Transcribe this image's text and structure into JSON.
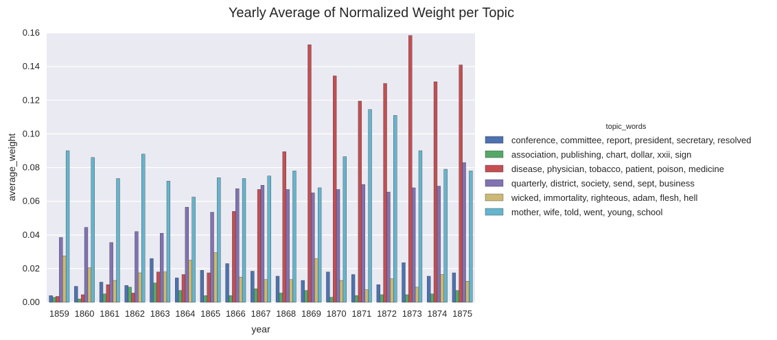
{
  "chart_data": {
    "type": "bar",
    "title": "Yearly Average of Normalized Weight per Topic",
    "xlabel": "year",
    "ylabel": "average_weight",
    "ylim": [
      0,
      0.16
    ],
    "yticks": [
      "0.00",
      "0.02",
      "0.04",
      "0.06",
      "0.08",
      "0.10",
      "0.12",
      "0.14",
      "0.16"
    ],
    "grid": true,
    "legend_title": "topic_words",
    "legend_position": "right",
    "categories": [
      "1859",
      "1860",
      "1861",
      "1862",
      "1863",
      "1864",
      "1865",
      "1866",
      "1867",
      "1868",
      "1869",
      "1870",
      "1871",
      "1872",
      "1873",
      "1874",
      "1875"
    ],
    "series": [
      {
        "name": "conference, committee, report, president, secretary, resolved",
        "color": "#4c72b0",
        "values": [
          0.004,
          0.0095,
          0.012,
          0.01,
          0.026,
          0.0145,
          0.019,
          0.023,
          0.0185,
          0.0155,
          0.013,
          0.018,
          0.0165,
          0.0105,
          0.0235,
          0.0155,
          0.0175
        ]
      },
      {
        "name": "association, publishing, chart, dollar, xxii, sign",
        "color": "#55a868",
        "values": [
          0.003,
          0.002,
          0.005,
          0.009,
          0.0115,
          0.007,
          0.004,
          0.004,
          0.008,
          0.0055,
          0.007,
          0.003,
          0.004,
          0.0045,
          0.0045,
          0.005,
          0.007
        ]
      },
      {
        "name": "disease, physician, tobacco, patient, poison, medicine",
        "color": "#c44e52",
        "values": [
          0.0035,
          0.0045,
          0.0105,
          0.0055,
          0.018,
          0.0165,
          0.0175,
          0.054,
          0.067,
          0.0895,
          0.153,
          0.1345,
          0.1195,
          0.13,
          0.1585,
          0.131,
          0.141
        ]
      },
      {
        "name": "quarterly, district, society, send, sept, business",
        "color": "#8172b2",
        "values": [
          0.0385,
          0.0445,
          0.0355,
          0.042,
          0.041,
          0.0565,
          0.0535,
          0.0675,
          0.0695,
          0.067,
          0.065,
          0.067,
          0.07,
          0.0655,
          0.068,
          0.069,
          0.083
        ]
      },
      {
        "name": "wicked, immortality, righteous, adam, flesh, hell",
        "color": "#ccb974",
        "values": [
          0.0275,
          0.0205,
          0.013,
          0.0175,
          0.018,
          0.025,
          0.0295,
          0.015,
          0.0135,
          0.0135,
          0.026,
          0.013,
          0.0075,
          0.014,
          0.009,
          0.0165,
          0.0125
        ]
      },
      {
        "name": "mother, wife, told, went, young, school",
        "color": "#64b5cd",
        "values": [
          0.09,
          0.086,
          0.0735,
          0.088,
          0.072,
          0.0625,
          0.074,
          0.0735,
          0.075,
          0.078,
          0.068,
          0.0865,
          0.1145,
          0.111,
          0.09,
          0.079,
          0.078
        ]
      }
    ]
  }
}
